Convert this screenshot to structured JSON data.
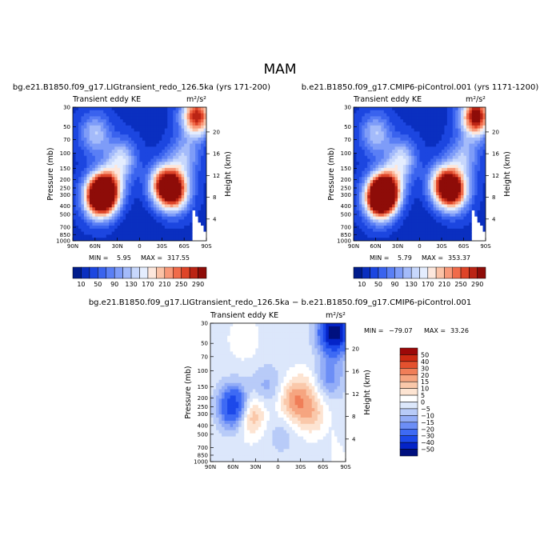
{
  "figure_title": "MAM",
  "chart_data": [
    {
      "type": "heatmap",
      "title": "bg.e21.B1850.f09_g17.LIGtransient_redo_126.5ka (yrs 171-200)",
      "subtitle": "Transient eddy KE",
      "units": "m²/s²",
      "xlabel": "",
      "ylabel": "Pressure (mb)",
      "ylabel_right": "Height (km)",
      "x_ticks": [
        "90N",
        "60N",
        "30N",
        "0",
        "30S",
        "60S",
        "90S"
      ],
      "y_ticks": [
        "30",
        "50",
        "70",
        "100",
        "150",
        "200",
        "250",
        "300",
        "400",
        "500",
        "700",
        "850",
        "1000"
      ],
      "y_ticks_right": [
        "20",
        "16",
        "12",
        "8",
        "4"
      ],
      "ylim": [
        1000,
        30
      ],
      "min_label": "MIN =",
      "min_value": "5.95",
      "max_label": "MAX =",
      "max_value": "317.55",
      "colorbar_labels": [
        "10",
        "50",
        "90",
        "130",
        "170",
        "210",
        "250",
        "290"
      ],
      "blobs": [
        {
          "lat": -77,
          "p": 38,
          "value": 290
        },
        {
          "lat": -47,
          "p": 270,
          "value": 270
        },
        {
          "lat": -33,
          "p": 230,
          "value": 250
        },
        {
          "lat": 45,
          "p": 270,
          "value": 300
        },
        {
          "lat": 55,
          "p": 320,
          "value": 315
        },
        {
          "lat": 25,
          "p": 120,
          "value": 150
        },
        {
          "lat": 60,
          "p": 60,
          "value": 130
        },
        {
          "lat": -60,
          "p": 110,
          "value": 120
        }
      ]
    },
    {
      "type": "heatmap",
      "title": "b.e21.B1850.f09_g17.CMIP6-piControl.001 (yrs 1171-1200)",
      "subtitle": "Transient eddy KE",
      "units": "m²/s²",
      "xlabel": "",
      "ylabel": "Pressure (mb)",
      "ylabel_right": "Height (km)",
      "x_ticks": [
        "90N",
        "60N",
        "30N",
        "0",
        "30S",
        "60S",
        "90S"
      ],
      "y_ticks": [
        "30",
        "50",
        "70",
        "100",
        "150",
        "200",
        "250",
        "300",
        "400",
        "500",
        "700",
        "850",
        "1000"
      ],
      "y_ticks_right": [
        "20",
        "16",
        "12",
        "8",
        "4"
      ],
      "ylim": [
        1000,
        30
      ],
      "min_label": "MIN =",
      "min_value": "5.79",
      "max_label": "MAX =",
      "max_value": "353.37",
      "colorbar_labels": [
        "10",
        "50",
        "90",
        "130",
        "170",
        "210",
        "250",
        "290"
      ],
      "blobs": [
        {
          "lat": -77,
          "p": 38,
          "value": 320
        },
        {
          "lat": -47,
          "p": 270,
          "value": 260
        },
        {
          "lat": -33,
          "p": 230,
          "value": 245
        },
        {
          "lat": 45,
          "p": 270,
          "value": 300
        },
        {
          "lat": 55,
          "p": 330,
          "value": 350
        },
        {
          "lat": 25,
          "p": 120,
          "value": 150
        },
        {
          "lat": 60,
          "p": 60,
          "value": 130
        },
        {
          "lat": -60,
          "p": 110,
          "value": 120
        }
      ]
    },
    {
      "type": "heatmap",
      "title": "bg.e21.B1850.f09_g17.LIGtransient_redo_126.5ka − b.e21.B1850.f09_g17.CMIP6-piControl.001",
      "subtitle": "Transient eddy KE",
      "units": "m²/s²",
      "xlabel": "",
      "ylabel": "Pressure (mb)",
      "ylabel_right": "Height (km)",
      "x_ticks": [
        "90N",
        "60N",
        "30N",
        "0",
        "30S",
        "60S",
        "90S"
      ],
      "y_ticks": [
        "30",
        "50",
        "70",
        "100",
        "150",
        "200",
        "250",
        "300",
        "400",
        "500",
        "700",
        "850",
        "1000"
      ],
      "y_ticks_right": [
        "20",
        "16",
        "12",
        "8",
        "4"
      ],
      "ylim": [
        1000,
        30
      ],
      "min_label": "MIN =",
      "min_value": "−79.07",
      "max_label": "MAX =",
      "max_value": "33.26",
      "colorbar_labels": [
        "50",
        "40",
        "30",
        "20",
        "15",
        "10",
        "5",
        "0",
        "−5",
        "−10",
        "−15",
        "−20",
        "−30",
        "−40",
        "−50"
      ],
      "blobs": [
        {
          "lat": -75,
          "p": 38,
          "value": -55
        },
        {
          "lat": -68,
          "p": 120,
          "value": -15
        },
        {
          "lat": -20,
          "p": 220,
          "value": 18
        },
        {
          "lat": -45,
          "p": 300,
          "value": 14
        },
        {
          "lat": -38,
          "p": 150,
          "value": 8
        },
        {
          "lat": 38,
          "p": 300,
          "value": 22
        },
        {
          "lat": 58,
          "p": 250,
          "value": -40
        },
        {
          "lat": 15,
          "p": 150,
          "value": -10
        },
        {
          "lat": 45,
          "p": 45,
          "value": 6
        },
        {
          "lat": -5,
          "p": 500,
          "value": -6
        }
      ]
    }
  ],
  "colors": {
    "eke_palette": [
      "#001c8c",
      "#0a2fc0",
      "#1c46e0",
      "#3a63ee",
      "#5a7ff5",
      "#7e9cf8",
      "#a4bbfa",
      "#c7d7fc",
      "#e4edfe",
      "#fde7dc",
      "#fbc2a6",
      "#f89878",
      "#f06b4a",
      "#de4428",
      "#bb2414",
      "#8e0c08"
    ],
    "diff_palette": [
      "#00107f",
      "#0424c8",
      "#1c49ea",
      "#3e6af4",
      "#6c8ef6",
      "#93adf7",
      "#b8cbf8",
      "#dce7fb",
      "#ffffff",
      "#fde4d2",
      "#fac8aa",
      "#f6a580",
      "#f07e58",
      "#e4512e",
      "#cc2a12",
      "#9c0808"
    ]
  }
}
